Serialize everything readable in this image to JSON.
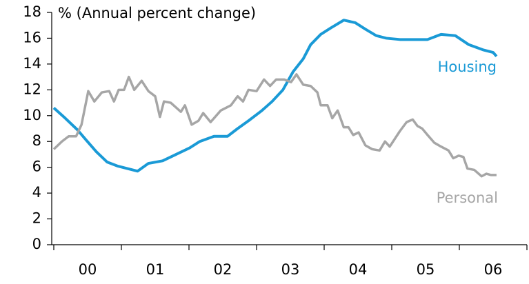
{
  "chart_data": {
    "type": "line",
    "ylabel": "% (Annual percent change)",
    "xlim": [
      2000,
      2007
    ],
    "xticks": [
      2000,
      2001,
      2002,
      2003,
      2004,
      2005,
      2006,
      2007
    ],
    "xlabels": [
      {
        "value": 2000.5,
        "label": "00"
      },
      {
        "value": 2001.5,
        "label": "01"
      },
      {
        "value": 2002.5,
        "label": "02"
      },
      {
        "value": 2003.5,
        "label": "03"
      },
      {
        "value": 2004.5,
        "label": "04"
      },
      {
        "value": 2005.5,
        "label": "05"
      },
      {
        "value": 2006.5,
        "label": "06"
      }
    ],
    "ylim": [
      0,
      18
    ],
    "yticks": [
      0,
      2,
      4,
      6,
      8,
      10,
      12,
      14,
      16,
      18
    ],
    "series": [
      {
        "name": "Housing",
        "color": "#1a9ad6",
        "x": [
          2000.0,
          2000.17,
          2000.35,
          2000.48,
          2000.63,
          2000.79,
          2000.94,
          2001.09,
          2001.24,
          2001.4,
          2001.61,
          2001.81,
          2002.01,
          2002.16,
          2002.37,
          2002.57,
          2002.72,
          2002.88,
          2003.08,
          2003.23,
          2003.39,
          2003.54,
          2003.69,
          2003.8,
          2003.95,
          2004.1,
          2004.29,
          2004.46,
          2004.61,
          2004.77,
          2004.92,
          2005.12,
          2005.33,
          2005.53,
          2005.73,
          2005.94,
          2006.14,
          2006.35,
          2006.5,
          2006.55
        ],
        "values": [
          10.6,
          9.8,
          8.9,
          8.1,
          7.2,
          6.4,
          6.1,
          5.9,
          5.7,
          6.3,
          6.5,
          7.0,
          7.5,
          8.0,
          8.4,
          8.4,
          9.0,
          9.6,
          10.4,
          11.1,
          12.0,
          13.4,
          14.4,
          15.5,
          16.3,
          16.8,
          17.4,
          17.2,
          16.7,
          16.2,
          16.0,
          15.9,
          15.9,
          15.9,
          16.3,
          16.2,
          15.5,
          15.1,
          14.9,
          14.6
        ]
      },
      {
        "name": "Personal",
        "color": "#a6a6a6",
        "x": [
          2000.0,
          2000.12,
          2000.22,
          2000.33,
          2000.41,
          2000.51,
          2000.6,
          2000.71,
          2000.82,
          2000.89,
          2000.96,
          2001.04,
          2001.11,
          2001.19,
          2001.3,
          2001.4,
          2001.5,
          2001.57,
          2001.63,
          2001.73,
          2001.88,
          2001.94,
          2002.04,
          2002.14,
          2002.21,
          2002.32,
          2002.47,
          2002.62,
          2002.72,
          2002.8,
          2002.88,
          2003.0,
          2003.11,
          2003.2,
          2003.29,
          2003.41,
          2003.51,
          2003.59,
          2003.69,
          2003.8,
          2003.9,
          2003.95,
          2004.05,
          2004.12,
          2004.2,
          2004.29,
          2004.36,
          2004.43,
          2004.51,
          2004.61,
          2004.71,
          2004.82,
          2004.9,
          2004.97,
          2005.12,
          2005.22,
          2005.31,
          2005.38,
          2005.45,
          2005.53,
          2005.63,
          2005.73,
          2005.84,
          2005.91,
          2005.99,
          2006.06,
          2006.12,
          2006.22,
          2006.33,
          2006.4,
          2006.47,
          2006.55
        ],
        "values": [
          7.4,
          8.0,
          8.4,
          8.4,
          9.3,
          11.9,
          11.1,
          11.8,
          11.9,
          11.1,
          12.0,
          12.0,
          13.0,
          12.0,
          12.7,
          11.9,
          11.5,
          9.9,
          11.1,
          11.0,
          10.3,
          10.8,
          9.3,
          9.6,
          10.2,
          9.5,
          10.4,
          10.8,
          11.5,
          11.1,
          12.0,
          11.9,
          12.8,
          12.3,
          12.8,
          12.8,
          12.6,
          13.2,
          12.4,
          12.3,
          11.8,
          10.8,
          10.8,
          9.8,
          10.4,
          9.1,
          9.1,
          8.5,
          8.7,
          7.7,
          7.4,
          7.3,
          8.0,
          7.6,
          8.8,
          9.5,
          9.7,
          9.2,
          9.0,
          8.5,
          7.9,
          7.6,
          7.3,
          6.7,
          6.9,
          6.8,
          5.9,
          5.8,
          5.3,
          5.5,
          5.4,
          5.4
        ]
      }
    ]
  }
}
